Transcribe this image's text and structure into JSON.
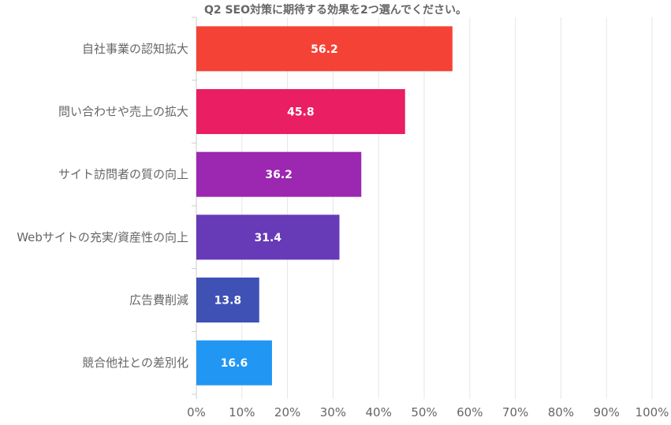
{
  "chart_data": {
    "type": "bar",
    "orientation": "horizontal",
    "title": "Q2 SEO対策に期待する効果を2つ選んでください。",
    "categories": [
      "自社事業の認知拡大",
      "問い合わせや売上の拡大",
      "サイト訪問者の質の向上",
      "Webサイトの充実/資産性の向上",
      "広告費削減",
      "競合他社との差別化"
    ],
    "values": [
      56.2,
      45.8,
      36.2,
      31.4,
      13.8,
      16.6
    ],
    "value_labels": [
      "56.2",
      "45.8",
      "36.2",
      "31.4",
      "13.8",
      "16.6"
    ],
    "colors": [
      "#f44336",
      "#e91e63",
      "#9c27b0",
      "#673ab7",
      "#3f51b5",
      "#2196f3"
    ],
    "xlim": [
      0,
      100
    ],
    "xticks": [
      "0%",
      "10%",
      "20%",
      "30%",
      "40%",
      "50%",
      "60%",
      "70%",
      "80%",
      "90%",
      "100%"
    ],
    "xlabel": "",
    "ylabel": "",
    "grid": true
  }
}
